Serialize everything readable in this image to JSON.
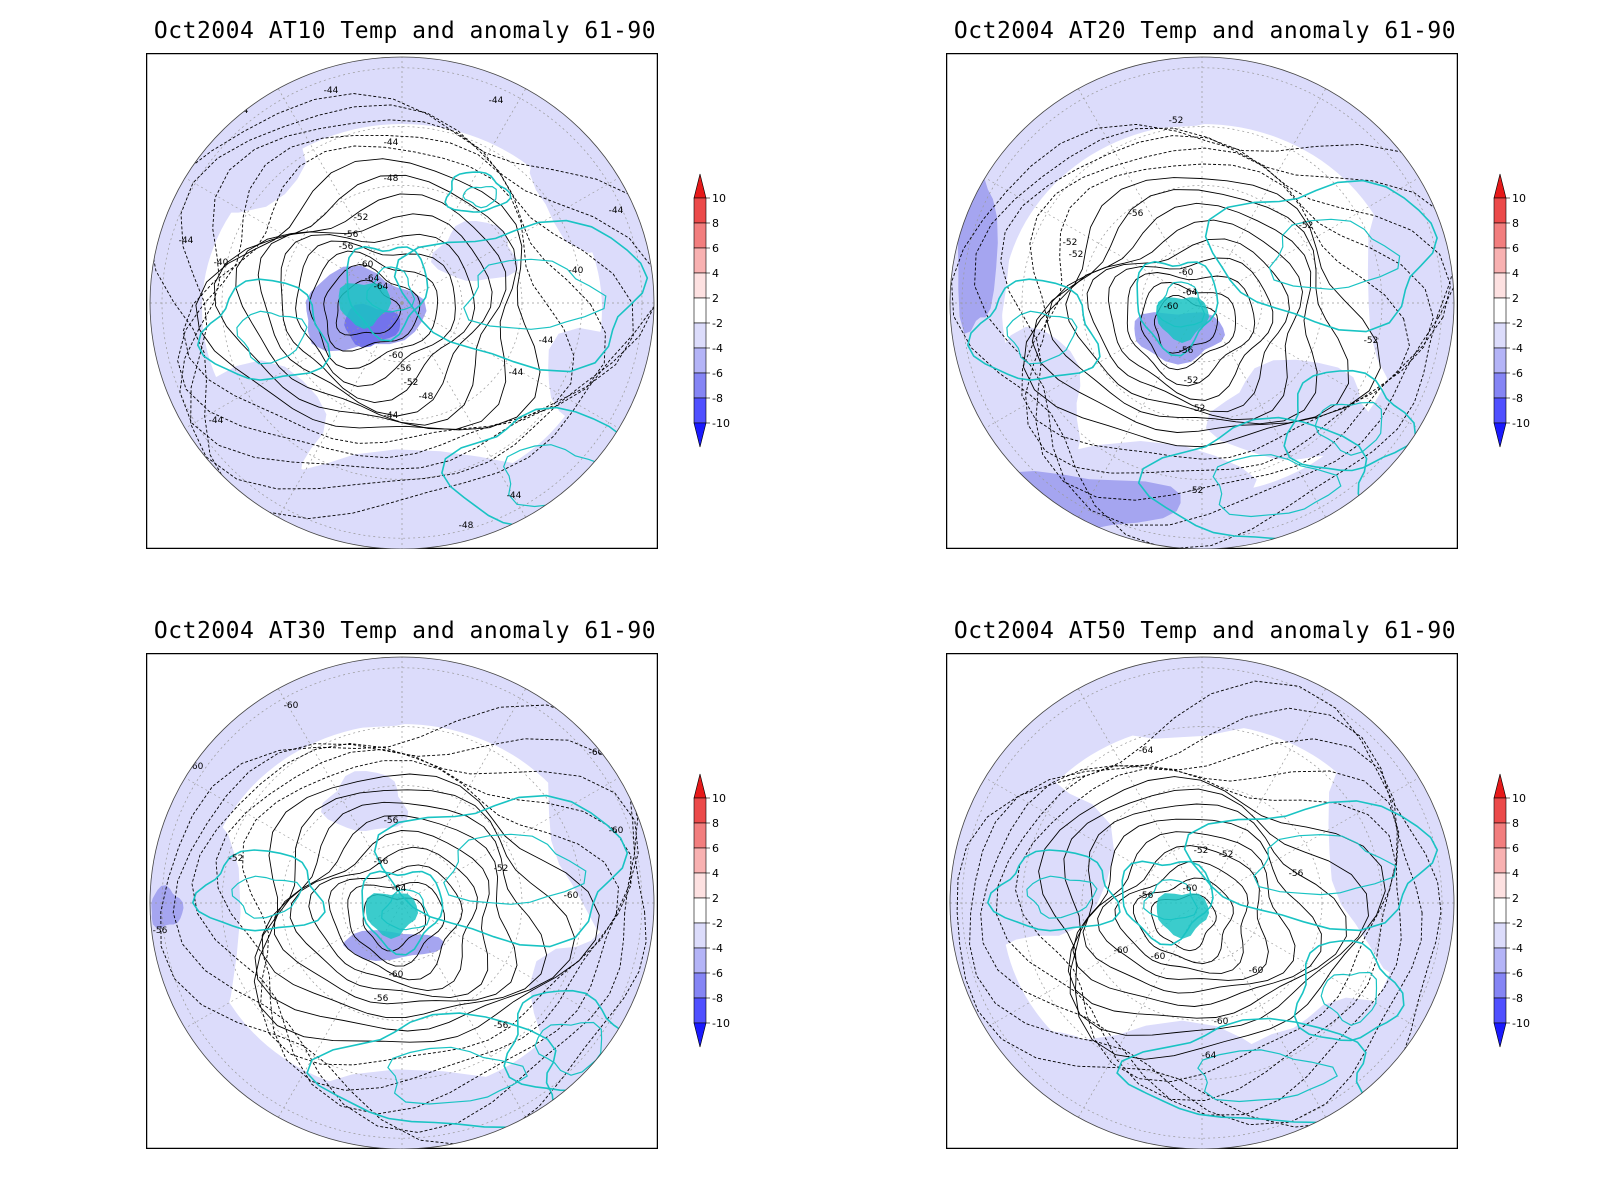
{
  "colors": {
    "land": "#19c3c3",
    "neg2": "#dcdcfb",
    "neg4": "#a5a5f0",
    "neg6": "#7373ec",
    "contour": "#000000",
    "colorbar": [
      "#1a1aff",
      "#5050ff",
      "#8585f5",
      "#b4b4f7",
      "#dcdcfb",
      "#ffffff",
      "#fde1e1",
      "#f8b1b1",
      "#f27e7e",
      "#eb4a4a",
      "#e61a1a"
    ]
  },
  "colorbar": {
    "labels": [
      "10",
      "8",
      "6",
      "4",
      "2",
      "-2",
      "-4",
      "-6",
      "-8",
      "-10"
    ]
  },
  "panels": [
    {
      "title": "Oct2004 AT10 Temp and anomaly 61-90",
      "center_label": "-64",
      "contour_labels": [
        "-44",
        "-44",
        "-44",
        "-44",
        "-44",
        "-40",
        "-40",
        "-44",
        "-48",
        "-52",
        "-56",
        "-56",
        "-60",
        "-64",
        "-60",
        "-56",
        "-52",
        "-48",
        "-44",
        "-44",
        "-44",
        "-44",
        "-48",
        "-44"
      ]
    },
    {
      "title": "Oct2004 AT20 Temp and anomaly 61-90",
      "center_label": "-64",
      "contour_labels": [
        "-52",
        "-56",
        "-52",
        "-52",
        "-52",
        "-60",
        "-60",
        "-56",
        "-52",
        "-52",
        "-52",
        "-52"
      ]
    },
    {
      "title": "Oct2004 AT30 Temp and anomaly 61-90",
      "center_label": "-64",
      "contour_labels": [
        "-60",
        "-60",
        "-60",
        "-60",
        "-60",
        "-52",
        "-56",
        "-56",
        "-52",
        "-60",
        "-56",
        "-56",
        "-60",
        "-56"
      ]
    },
    {
      "title": "Oct2004 AT50 Temp and anomaly 61-90",
      "center_label": "-60",
      "contour_labels": [
        "-64",
        "-52",
        "-52",
        "-56",
        "-56",
        "-60",
        "-60",
        "-60",
        "-60",
        "-64"
      ]
    }
  ]
}
